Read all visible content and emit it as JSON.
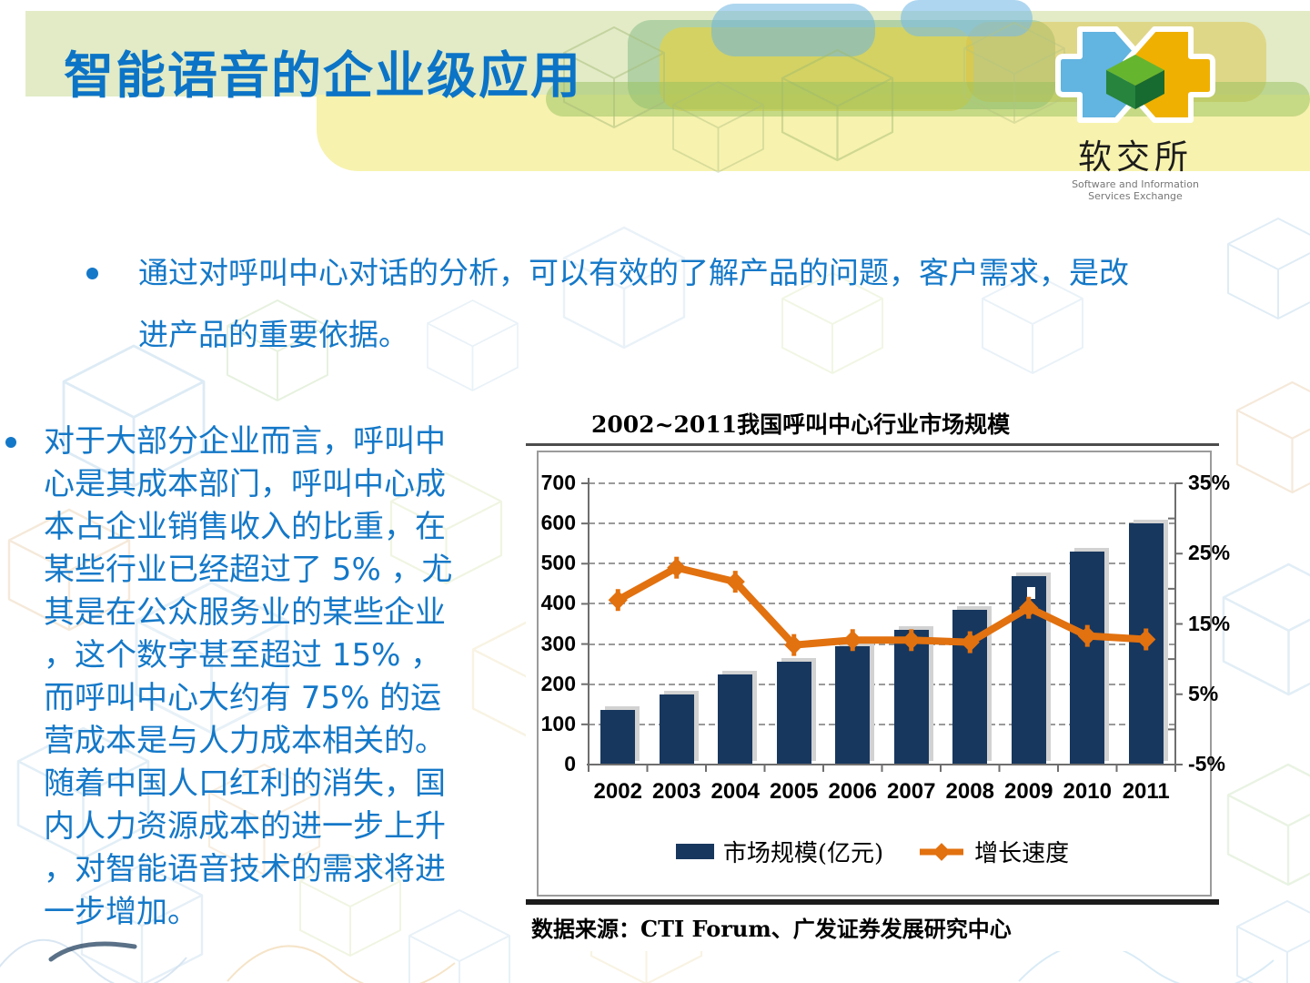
{
  "slide": {
    "title": "智能语音的企业级应用",
    "logo": {
      "name": "软交所",
      "subtitle_line1": "Software and Information",
      "subtitle_line2": "Services Exchange"
    },
    "bullets": {
      "top": "通过对呼叫中心对话的分析，可以有效的了解产品的问题，客户需求，是改进产品的重要依据。",
      "left": "对于大部分企业而言，呼叫中心是其成本部门，呼叫中心成本占企业销售收入的比重，在某些行业已经超过了 5% ，尤其是在公众服务业的某些企业，这个数字甚至超过 15% ，而呼叫中心大约有 75% 的运营成本是与人力成本相关的。随着中国人口红利的消失，国内人力资源成本的进一步上升，对智能语音技术的需求将进一步增加。"
    },
    "source": "数据来源：CTI Forum、广发证券发展研究中心"
  },
  "chart_data": {
    "type": "bar+line",
    "title": "2002~2011我国呼叫中心行业市场规模",
    "categories": [
      "2002",
      "2003",
      "2004",
      "2005",
      "2006",
      "2007",
      "2008",
      "2009",
      "2010",
      "2011"
    ],
    "series": [
      {
        "name": "市场规模(亿元)",
        "type": "bar",
        "axis": "left",
        "color": "#17375E",
        "values": [
          135,
          175,
          225,
          257,
          295,
          335,
          385,
          470,
          530,
          600
        ]
      },
      {
        "name": "增长速度",
        "type": "line",
        "axis": "right",
        "color": "#E2710F",
        "values": [
          18.4,
          23,
          21,
          12,
          12.7,
          12.7,
          12.4,
          17.3,
          13.3,
          12.8
        ]
      }
    ],
    "left_axis": {
      "min": 0,
      "max": 700,
      "tick_step": 100,
      "tick_labels": [
        "0",
        "100",
        "200",
        "300",
        "400",
        "500",
        "600",
        "700"
      ]
    },
    "right_axis": {
      "min": -5,
      "max": 35,
      "minor_step": 5,
      "tick_values": [
        -5,
        5,
        15,
        25,
        35
      ],
      "tick_labels": [
        "-5%",
        "5%",
        "15%",
        "25%",
        "35%"
      ]
    },
    "grid": "dashed-horizontal",
    "legend_position": "bottom"
  },
  "colors": {
    "title_blue": "#0C74C6",
    "body_blue": "#1478C8",
    "bar_navy": "#17375E",
    "line_orange": "#E2710F",
    "band_green": "#E2EBC6",
    "band_yellow": "#F7F2AE"
  }
}
